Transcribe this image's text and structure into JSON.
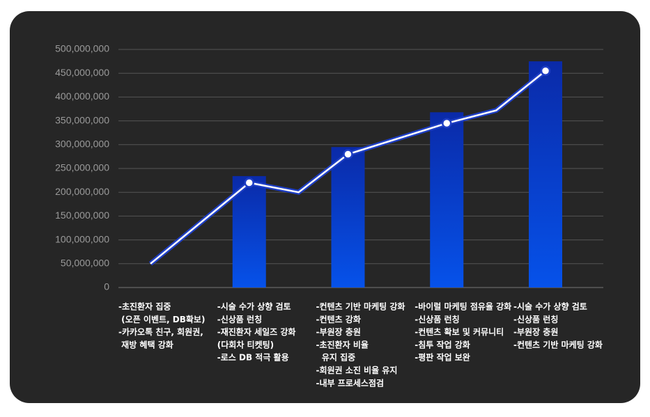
{
  "chart_data": {
    "type": "bar",
    "categories": [
      [
        "-초진환자 집중",
        " (오픈 이벤트, DB확보)",
        "-카카오톡 친구, 회원권,",
        " 재방 혜택 강화"
      ],
      [
        "-시술 수가 상향 검토",
        "-신상품 런칭",
        "-재진환자 세일즈 강화",
        "(다회차 티켓팅)",
        "-로스 DB 적극 활용"
      ],
      [
        "-컨텐츠 기반 마케팅 강화",
        "-컨텐츠 강화",
        "-부원장 충원",
        "-초진환자 비율",
        "  유지 집중",
        "-회원권 소진 비율 유지",
        "-내부 프로세스점검"
      ],
      [
        "-바이럴 마케팅 점유율 강화",
        "-신상품 런칭",
        "-컨텐츠 확보 및 커뮤니티",
        "-침투 작업 강화",
        "-평판 작업 보완"
      ],
      [
        "-시술 수가 상향 검토",
        "-신상품 런칭",
        "-부원장 충원",
        "-컨텐츠 기반 마케팅 강화"
      ]
    ],
    "series": [
      {
        "type": "bar",
        "values": [
          null,
          234000000,
          295000000,
          368000000,
          475000000
        ],
        "gradient": [
          "#0a2aa8",
          "#0652ea"
        ]
      },
      {
        "type": "line",
        "x": [
          0,
          1,
          1.5,
          2,
          3,
          3.5,
          4
        ],
        "values": [
          50000000,
          220000000,
          200000000,
          280000000,
          345000000,
          372000000,
          455000000
        ],
        "markers": [
          false,
          true,
          false,
          true,
          true,
          false,
          true
        ],
        "color": "#1e3ec4"
      }
    ],
    "ylim": [
      0,
      500000000
    ],
    "yticks": [
      0,
      {
        "value": 50000000,
        "label": "50,000,000"
      },
      {
        "value": 100000000,
        "label": "100,000,000"
      },
      {
        "value": 150000000,
        "label": "150,000,000"
      },
      {
        "value": 200000000,
        "label": "200,000,000"
      },
      {
        "value": 250000000,
        "label": "250,000,000"
      },
      {
        "value": 300000000,
        "label": "300,000,000"
      },
      {
        "value": 350000000,
        "label": "350,000,000"
      },
      {
        "value": 400000000,
        "label": "400,000,000"
      },
      {
        "value": 450000000,
        "label": "450,000,000"
      },
      {
        "value": 500000000,
        "label": "500,000,000"
      }
    ],
    "grid": true
  }
}
